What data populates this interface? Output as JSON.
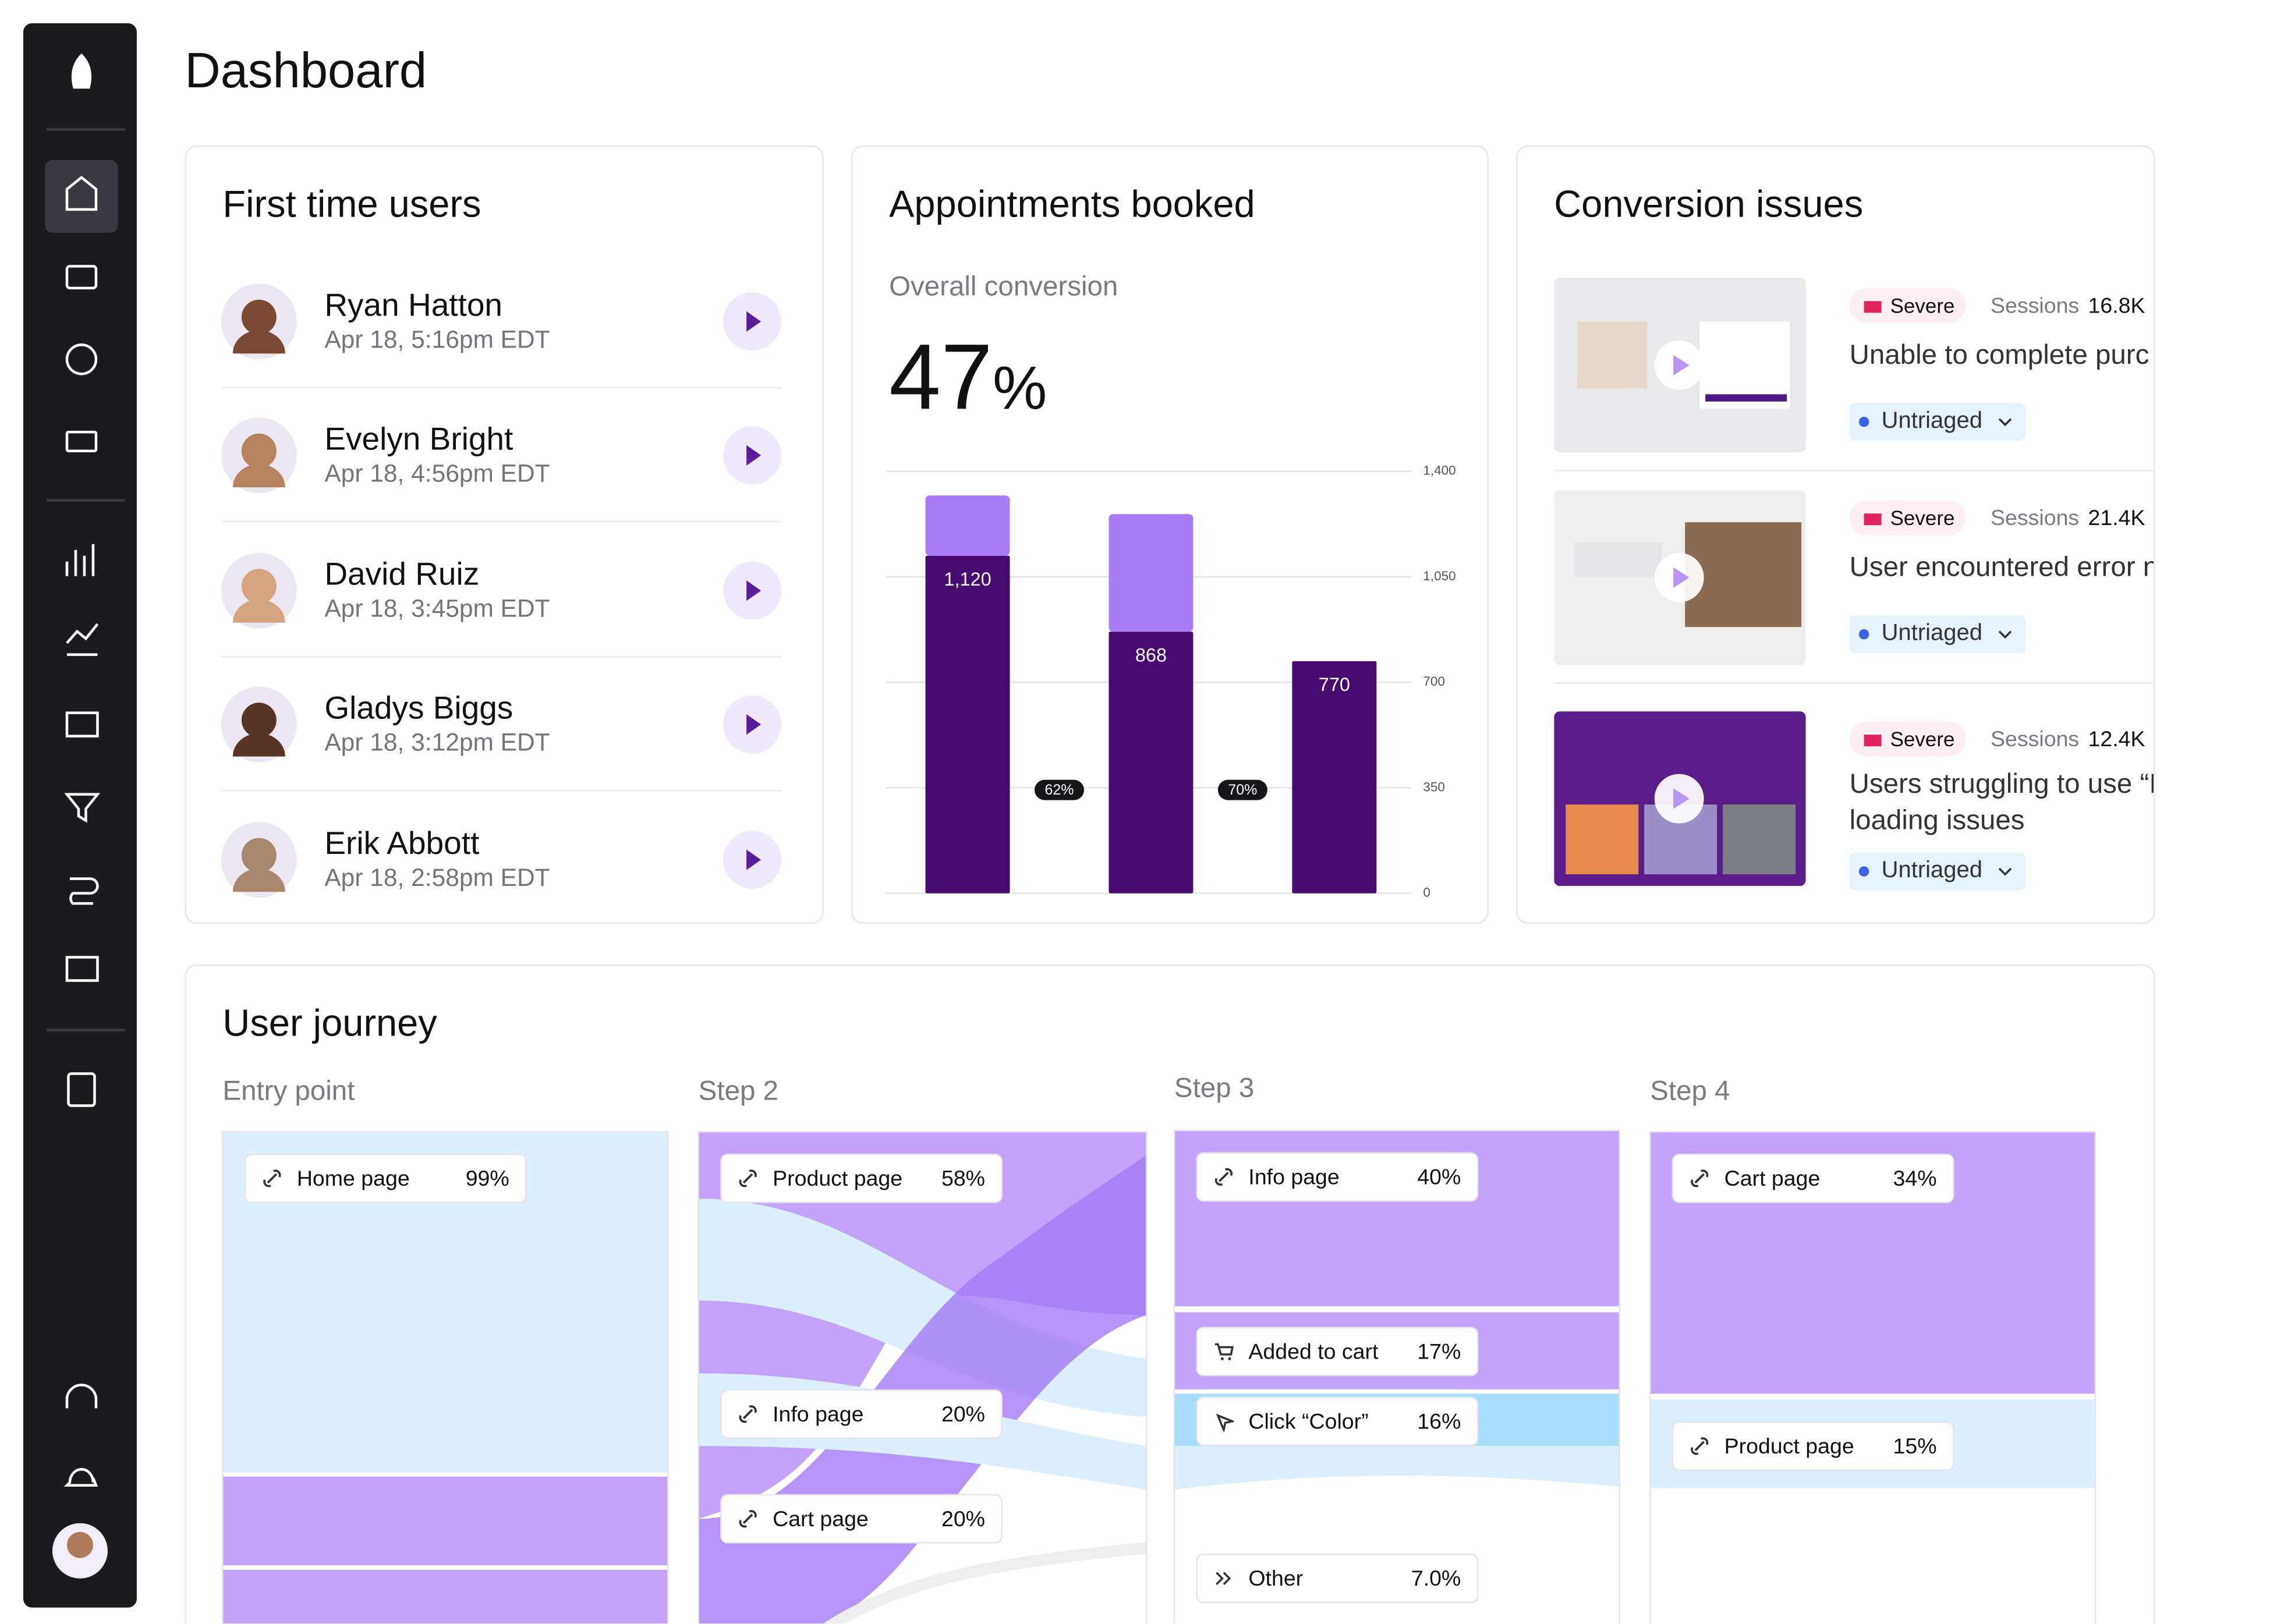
{
  "header": {
    "title": "Dashboard"
  },
  "first_time_users": {
    "title": "First time users",
    "users": [
      {
        "name": "Ryan Hatton",
        "date": "Apr 18, 5:16pm EDT"
      },
      {
        "name": "Evelyn Bright",
        "date": "Apr 18, 4:56pm EDT"
      },
      {
        "name": "David Ruiz",
        "date": "Apr 18, 3:45pm EDT"
      },
      {
        "name": "Gladys Biggs",
        "date": "Apr 18, 3:12pm EDT"
      },
      {
        "name": "Erik Abbott",
        "date": "Apr 18, 2:58pm EDT"
      }
    ]
  },
  "appointments": {
    "title": "Appointments booked",
    "subtitle": "Overall conversion",
    "conversion": "47",
    "conversion_unit": "%",
    "chart_data": {
      "type": "bar",
      "stacked": true,
      "series": [
        {
          "color": "#480a6f",
          "values": [
            1120,
            868,
            770
          ],
          "value_labels": [
            "1,120",
            "868",
            "770"
          ]
        },
        {
          "color": "#a97cf6",
          "values": [
            200,
            390,
            null
          ]
        }
      ],
      "step_labels": [
        "62%",
        "70%"
      ],
      "ylim": [
        0,
        1400
      ],
      "yticks": [
        0,
        350,
        700,
        {
          "value": 1050,
          "label": "1,050"
        },
        {
          "value": 1400,
          "label": "1,400"
        }
      ],
      "grid": true
    }
  },
  "conversion_issues": {
    "title": "Conversion issues",
    "issues": [
      {
        "severity": "Severe",
        "sessions_label": "Sessions",
        "sessions": "16.8K",
        "title": [
          "Unable to complete purc"
        ],
        "status": "Untriaged"
      },
      {
        "severity": "Severe",
        "sessions_label": "Sessions",
        "sessions": "21.4K",
        "title": [
          "User encountered error n"
        ],
        "status": "Untriaged"
      },
      {
        "severity": "Severe",
        "sessions_label": "Sessions",
        "sessions": "12.4K",
        "title": [
          "Users struggling to use “I",
          "loading issues"
        ],
        "status": "Untriaged"
      }
    ]
  },
  "user_journey": {
    "title": "User journey",
    "steps": [
      {
        "title": "Entry point",
        "items": [
          {
            "label": "Home page",
            "value": "99%"
          }
        ]
      },
      {
        "title": "Step 2",
        "items": [
          {
            "label": "Product page",
            "value": "58%"
          },
          {
            "label": "Info page",
            "value": "20%"
          },
          {
            "label": "Cart page",
            "value": "20%"
          }
        ]
      },
      {
        "title": "Step 3",
        "items": [
          {
            "label": "Info page",
            "value": "40%"
          },
          {
            "label": "Added to cart",
            "value": "17%"
          },
          {
            "label": "Click “Color”",
            "value": "16%"
          },
          {
            "label": "Other",
            "value": "7.0%"
          }
        ]
      },
      {
        "title": "Step 4",
        "items": [
          {
            "label": "Cart page",
            "value": "34%"
          },
          {
            "label": "Product page",
            "value": "15%"
          }
        ]
      }
    ]
  }
}
